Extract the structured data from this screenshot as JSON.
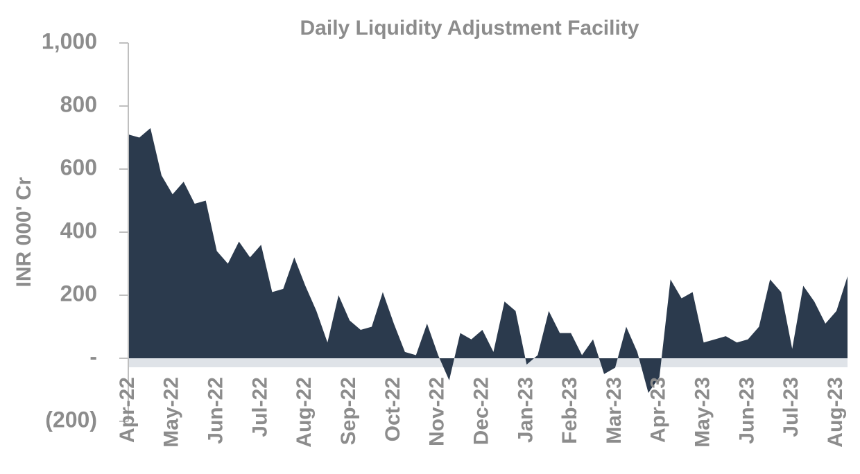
{
  "chart_data": {
    "type": "area",
    "title": "Daily Liquidity Adjustment Facility",
    "y_label": "INR 000' Cr",
    "color": "#2b3a4d",
    "categories": [
      "Apr-22",
      null,
      null,
      null,
      "May-22",
      null,
      null,
      null,
      "Jun-22",
      null,
      null,
      null,
      "Jul-22",
      null,
      null,
      null,
      "Aug-22",
      null,
      null,
      null,
      "Sep-22",
      null,
      null,
      null,
      "Oct-22",
      null,
      null,
      null,
      "Nov-22",
      null,
      null,
      null,
      "Dec-22",
      null,
      null,
      null,
      "Jan-23",
      null,
      null,
      null,
      "Feb-23",
      null,
      null,
      null,
      "Mar-23",
      null,
      null,
      null,
      "Apr-23",
      null,
      null,
      null,
      "May-23",
      null,
      null,
      null,
      "Jun-23",
      null,
      null,
      null,
      "Jul-23",
      null,
      null,
      null,
      "Aug-23",
      null
    ],
    "values": [
      710,
      700,
      730,
      580,
      520,
      560,
      490,
      500,
      340,
      300,
      370,
      320,
      360,
      210,
      220,
      320,
      230,
      150,
      50,
      200,
      120,
      90,
      100,
      210,
      110,
      20,
      10,
      110,
      10,
      -70,
      80,
      60,
      90,
      20,
      180,
      150,
      -20,
      10,
      150,
      80,
      80,
      10,
      60,
      -50,
      -30,
      100,
      20,
      -110,
      -60,
      250,
      190,
      210,
      50,
      60,
      70,
      50,
      60,
      100,
      250,
      210,
      30,
      230,
      180,
      110,
      150,
      260
    ],
    "ylim": [
      -200,
      1000
    ],
    "yticks": [
      {
        "value": -200,
        "label": "(200)"
      },
      {
        "value": 0,
        "label": "-"
      },
      200,
      400,
      600,
      800,
      {
        "value": 1000,
        "label": "1,000"
      }
    ]
  }
}
